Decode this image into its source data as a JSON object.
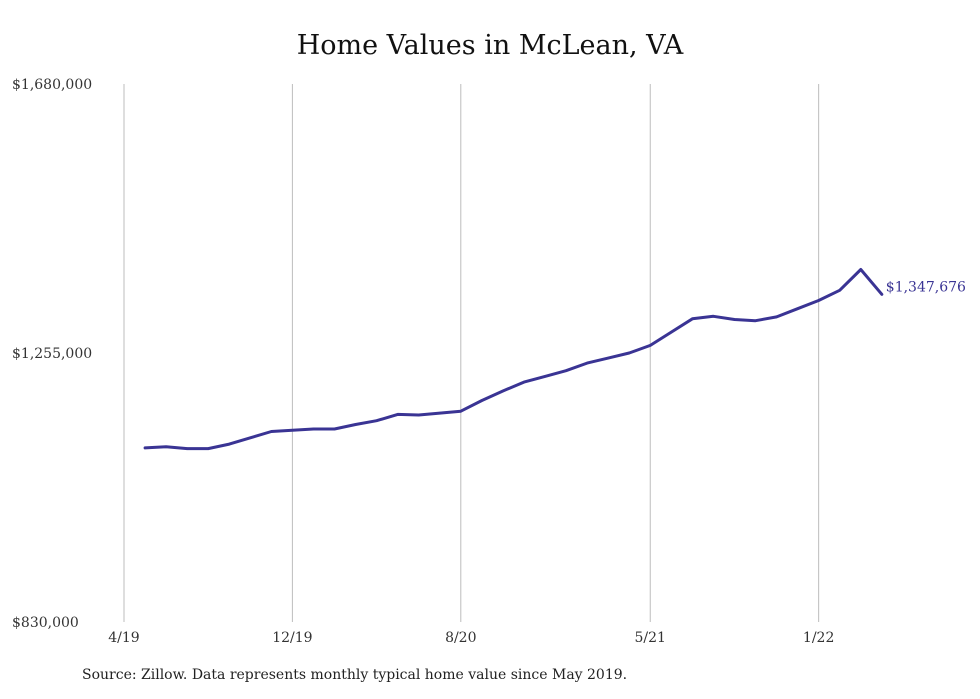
{
  "chart_data": {
    "type": "line",
    "title": "Home Values in McLean, VA",
    "xlabel": "",
    "ylabel": "",
    "ylim": [
      830000,
      1680000
    ],
    "y_ticks": [
      "$1,680,000",
      "$1,255,000",
      "$830,000"
    ],
    "y_tick_values": [
      1680000,
      1255000,
      830000
    ],
    "x_ticks": [
      "4/19",
      "12/19",
      "8/20",
      "5/21",
      "1/22"
    ],
    "x_tick_months": [
      "2019-04",
      "2019-12",
      "2020-08",
      "2021-05",
      "2022-01"
    ],
    "grid": "vertical",
    "series": [
      {
        "color": "#3a3494",
        "end_label": "$1,347,676",
        "x": [
          "2019-05",
          "2019-06",
          "2019-07",
          "2019-08",
          "2019-09",
          "2019-10",
          "2019-11",
          "2019-12",
          "2020-01",
          "2020-02",
          "2020-03",
          "2020-04",
          "2020-05",
          "2020-06",
          "2020-07",
          "2020-08",
          "2020-09",
          "2020-10",
          "2020-11",
          "2020-12",
          "2021-01",
          "2021-02",
          "2021-03",
          "2021-04",
          "2021-05",
          "2021-06",
          "2021-07",
          "2021-08",
          "2021-09",
          "2021-10",
          "2021-11",
          "2021-12",
          "2022-01",
          "2022-02",
          "2022-03",
          "2022-04"
        ],
        "values": [
          1105000,
          1107000,
          1104000,
          1104000,
          1111000,
          1121000,
          1131000,
          1133000,
          1135000,
          1135000,
          1142000,
          1148000,
          1158000,
          1157000,
          1160000,
          1163000,
          1180000,
          1195000,
          1209000,
          1218000,
          1227000,
          1239000,
          1247000,
          1255000,
          1267000,
          1288000,
          1309000,
          1313000,
          1308000,
          1306000,
          1312000,
          1325000,
          1338000,
          1354000,
          1387000,
          1347676
        ]
      }
    ]
  },
  "footer": {
    "source": "Source: Zillow. Data represents monthly typical home value since May 2019."
  }
}
